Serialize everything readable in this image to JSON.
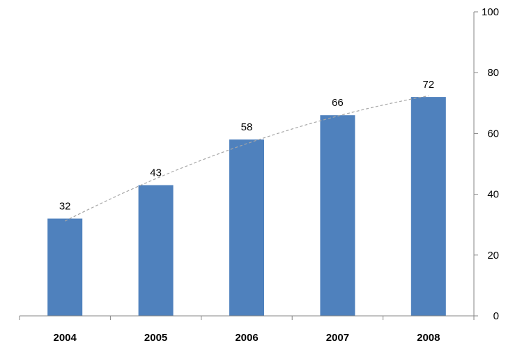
{
  "chart_data": {
    "type": "bar",
    "categories": [
      "2004",
      "2005",
      "2006",
      "2007",
      "2008"
    ],
    "values": [
      32,
      43,
      58,
      66,
      72
    ],
    "data_labels": [
      "32",
      "43",
      "58",
      "66",
      "72"
    ],
    "trendline": {
      "type": "polynomial",
      "style": "dashed",
      "color": "#a6a6a6"
    },
    "title": "",
    "xlabel": "",
    "ylabel": "",
    "ylim": [
      0,
      100
    ],
    "yticks": [
      0,
      20,
      40,
      60,
      80,
      100
    ],
    "ytick_labels": [
      "0",
      "20",
      "40",
      "60",
      "80",
      "100"
    ],
    "y_axis_side": "right",
    "grid": false,
    "legend": "none",
    "colors": {
      "bar": "#4f81bd",
      "axis": "#868686",
      "trendline": "#a6a6a6"
    }
  }
}
